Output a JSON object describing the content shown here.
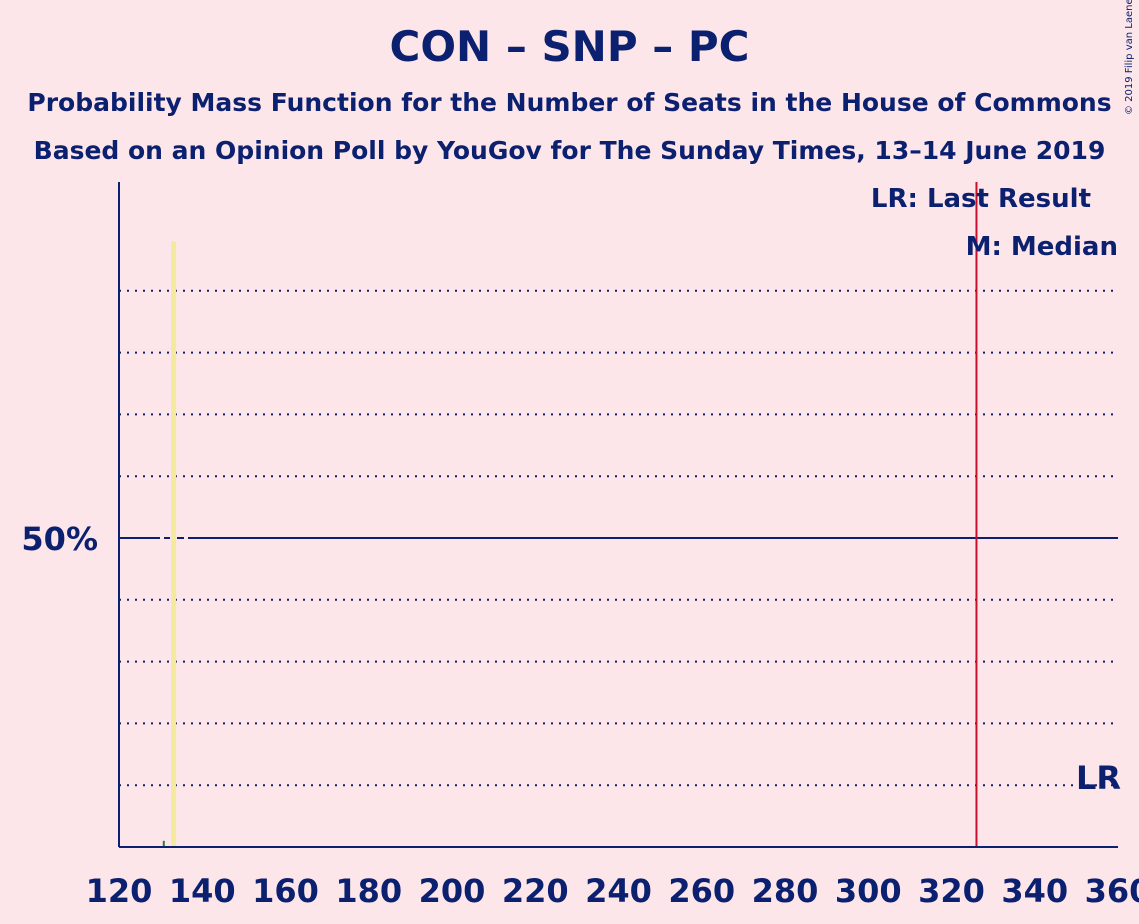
{
  "title": "CON – SNP – PC",
  "subtitle1": "Probability Mass Function for the Number of Seats in the House of Commons",
  "subtitle2": "Based on an Opinion Poll by YouGov for The Sunday Times, 13–14 June 2019",
  "copyright": "© 2019 Filip van Laenen",
  "legend": {
    "last_result": "LR: Last Result",
    "median": "M: Median",
    "lr_mark": "LR"
  },
  "colors": {
    "background": "#fde6ea",
    "axis": "#0c2070",
    "last_result_line": "#c8102e",
    "bar": "#f5e9a0",
    "bar_small": "#2e7d32"
  },
  "chart_data": {
    "type": "bar",
    "title": "CON – SNP – PC",
    "xlabel": "",
    "ylabel": "",
    "xlim": [
      120,
      360
    ],
    "ylim": [
      0,
      100
    ],
    "x_ticks": [
      120,
      140,
      160,
      180,
      200,
      220,
      240,
      260,
      280,
      300,
      320,
      340,
      360
    ],
    "y_tick_labels": [
      {
        "value": 50,
        "label": "50%"
      }
    ],
    "gridlines_dotted": [
      10,
      20,
      30,
      40,
      60,
      70,
      80,
      90
    ],
    "gridline_solid": 50,
    "last_result": 326,
    "median": 133,
    "series": [
      {
        "values": [
          {
            "x": 131,
            "y": 1
          },
          {
            "x": 133,
            "y": 98
          },
          {
            "x": 147,
            "y": 0.1
          }
        ]
      }
    ]
  }
}
